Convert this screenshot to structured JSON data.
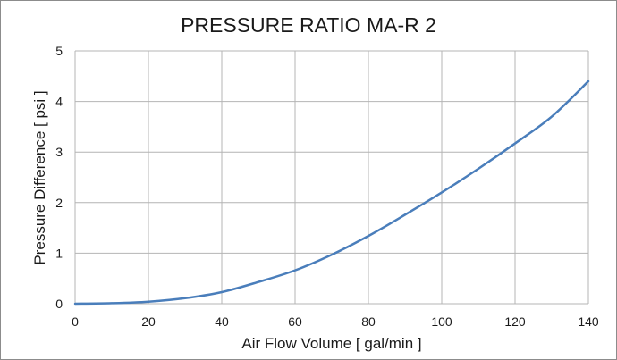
{
  "chart_data": {
    "type": "line",
    "title": "PRESSURE RATIO MA-R 2",
    "xlabel": "Air Flow Volume [ gal/min ]",
    "ylabel": "Pressure Difference [ psi ]",
    "xlim": [
      0,
      140
    ],
    "ylim": [
      0,
      5
    ],
    "xticks": [
      0,
      20,
      40,
      60,
      80,
      100,
      120,
      140
    ],
    "yticks": [
      0,
      1,
      2,
      3,
      4,
      5
    ],
    "grid": true,
    "series": [
      {
        "color": "#4a7ebb",
        "x": [
          0,
          10,
          20,
          30,
          40,
          50,
          60,
          70,
          80,
          90,
          100,
          110,
          120,
          130,
          140
        ],
        "y": [
          0,
          0.01,
          0.04,
          0.11,
          0.23,
          0.43,
          0.66,
          0.97,
          1.34,
          1.76,
          2.2,
          2.67,
          3.17,
          3.7,
          4.4
        ]
      }
    ]
  }
}
